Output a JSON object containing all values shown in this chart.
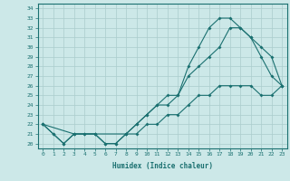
{
  "xlabel": "Humidex (Indice chaleur)",
  "bg_color": "#cce8e8",
  "line_color": "#1a7070",
  "grid_color": "#aacccc",
  "xlim": [
    -0.5,
    23.5
  ],
  "ylim": [
    19.5,
    34.5
  ],
  "xticks": [
    0,
    1,
    2,
    3,
    4,
    5,
    6,
    7,
    8,
    9,
    10,
    11,
    12,
    13,
    14,
    15,
    16,
    17,
    18,
    19,
    20,
    21,
    22,
    23
  ],
  "yticks": [
    20,
    21,
    22,
    23,
    24,
    25,
    26,
    27,
    28,
    29,
    30,
    31,
    32,
    33,
    34
  ],
  "line1_x": [
    0,
    1,
    2,
    3,
    4,
    5,
    6,
    7,
    8,
    9,
    10,
    11,
    12,
    13,
    14,
    15,
    16,
    17,
    18,
    19,
    20,
    21,
    22,
    23
  ],
  "line1_y": [
    22,
    21,
    20,
    21,
    21,
    21,
    20,
    20,
    21,
    22,
    23,
    24,
    24,
    25,
    27,
    28,
    29,
    30,
    32,
    32,
    31,
    30,
    29,
    26
  ],
  "line2_x": [
    0,
    3,
    5,
    8,
    9,
    10,
    11,
    12,
    13,
    14,
    15,
    16,
    17,
    18,
    19,
    20,
    21,
    22,
    23
  ],
  "line2_y": [
    22,
    21,
    21,
    21,
    22,
    23,
    24,
    25,
    25,
    28,
    30,
    32,
    33,
    33,
    32,
    31,
    29,
    27,
    26
  ],
  "line3_x": [
    0,
    1,
    2,
    3,
    4,
    5,
    6,
    7,
    8,
    9,
    10,
    11,
    12,
    13,
    14,
    15,
    16,
    17,
    18,
    19,
    20,
    21,
    22,
    23
  ],
  "line3_y": [
    22,
    21,
    20,
    21,
    21,
    21,
    20,
    20,
    21,
    21,
    22,
    22,
    23,
    23,
    24,
    25,
    25,
    26,
    26,
    26,
    26,
    25,
    25,
    26
  ]
}
